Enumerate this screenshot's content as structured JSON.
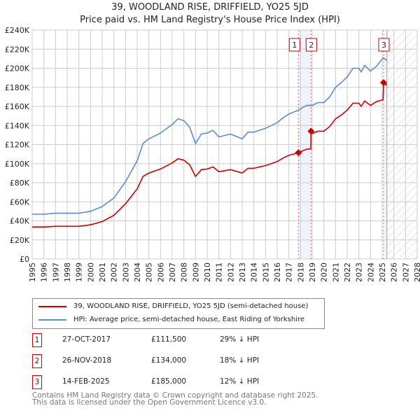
{
  "chart_data": {
    "type": "line",
    "title": "39, WOODLAND RISE, DRIFFIELD, YO25 5JD",
    "subtitle": "Price paid vs. HM Land Registry's House Price Index (HPI)",
    "xlim": [
      1995,
      2028
    ],
    "ylim": [
      0,
      240000
    ],
    "x_ticks": [
      "1995",
      "1996",
      "1997",
      "1998",
      "1999",
      "2000",
      "2001",
      "2002",
      "2003",
      "2004",
      "2005",
      "2006",
      "2007",
      "2008",
      "2009",
      "2010",
      "2011",
      "2012",
      "2013",
      "2014",
      "2015",
      "2016",
      "2017",
      "2018",
      "2019",
      "2020",
      "2021",
      "2022",
      "2023",
      "2024",
      "2025",
      "2026",
      "2027",
      "2028"
    ],
    "y_ticks": [
      {
        "value": 0,
        "label": "£0"
      },
      {
        "value": 20000,
        "label": "£20K"
      },
      {
        "value": 40000,
        "label": "£40K"
      },
      {
        "value": 60000,
        "label": "£60K"
      },
      {
        "value": 80000,
        "label": "£80K"
      },
      {
        "value": 100000,
        "label": "£100K"
      },
      {
        "value": 120000,
        "label": "£120K"
      },
      {
        "value": 140000,
        "label": "£140K"
      },
      {
        "value": 160000,
        "label": "£160K"
      },
      {
        "value": 180000,
        "label": "£180K"
      },
      {
        "value": 200000,
        "label": "£200K"
      },
      {
        "value": 220000,
        "label": "£220K"
      },
      {
        "value": 240000,
        "label": "£240K"
      }
    ],
    "grid": true,
    "forecast_hatch_from": 2025.4,
    "highlight_band": [
      2017.82,
      2018.9
    ],
    "series": [
      {
        "name": "39, WOODLAND RISE, DRIFFIELD, YO25 5JD (semi-detached house)",
        "color": "#cc0000",
        "x": [
          1995,
          1996,
          1997,
          1998,
          1999,
          2000,
          2001,
          2002,
          2003,
          2004,
          2004.5,
          2005,
          2006,
          2007,
          2007.5,
          2008,
          2008.5,
          2009,
          2009.5,
          2010,
          2010.5,
          2011,
          2012,
          2013,
          2013.5,
          2014,
          2015,
          2016,
          2016.5,
          2017,
          2017.82,
          2018.5,
          2018.88,
          2018.9,
          2019,
          2019.5,
          2020,
          2020.5,
          2021,
          2021.5,
          2022,
          2022.5,
          2023,
          2023.2,
          2023.5,
          2024,
          2024.5,
          2025.08,
          2025.12,
          2025.4
        ],
        "y": [
          33600,
          33600,
          34300,
          34300,
          34300,
          35800,
          39300,
          45800,
          57900,
          73600,
          86500,
          90100,
          94400,
          100800,
          105100,
          103700,
          98700,
          86500,
          93700,
          94400,
          96500,
          91500,
          93700,
          90100,
          95100,
          95100,
          98000,
          102200,
          105800,
          108700,
          111500,
          115100,
          115500,
          134000,
          131500,
          134000,
          134000,
          138900,
          147000,
          151000,
          156000,
          163400,
          163400,
          160000,
          165800,
          161000,
          165000,
          167000,
          185000,
          182000
        ]
      },
      {
        "name": "HPI: Average price, semi-detached house, East Riding of Yorkshire",
        "color": "#5b8bd0",
        "x": [
          1995,
          1996,
          1997,
          1998,
          1999,
          2000,
          2001,
          2002,
          2003,
          2004,
          2004.5,
          2005,
          2006,
          2007,
          2007.5,
          2008,
          2008.5,
          2009,
          2009.5,
          2010,
          2010.5,
          2011,
          2012,
          2013,
          2013.5,
          2014,
          2015,
          2016,
          2016.5,
          2017,
          2017.82,
          2018.5,
          2019,
          2019.5,
          2020,
          2020.5,
          2021,
          2021.5,
          2022,
          2022.5,
          2023,
          2023.2,
          2023.5,
          2024,
          2024.5,
          2025.1,
          2025.4
        ],
        "y": [
          47000,
          47000,
          48000,
          48000,
          48000,
          50000,
          55000,
          64000,
          81000,
          103000,
          121000,
          126000,
          132000,
          141000,
          147000,
          145000,
          138000,
          121000,
          131000,
          132000,
          135000,
          128000,
          131000,
          126000,
          133000,
          133000,
          137000,
          143000,
          148000,
          152000,
          156000,
          161000,
          161000,
          164000,
          164000,
          170000,
          180000,
          185000,
          191000,
          200000,
          200000,
          196000,
          203000,
          197000,
          202000,
          211000,
          208000
        ]
      }
    ],
    "sales": [
      {
        "id": "1",
        "x": 2017.82,
        "price": 111500,
        "date": "27-OCT-2017",
        "price_label": "£111,500",
        "hpi_diff": "29% ↓ HPI"
      },
      {
        "id": "2",
        "x": 2018.9,
        "price": 134000,
        "date": "26-NOV-2018",
        "price_label": "£134,000",
        "hpi_diff": "18% ↓ HPI"
      },
      {
        "id": "3",
        "x": 2025.12,
        "price": 185000,
        "date": "14-FEB-2025",
        "price_label": "£185,000",
        "hpi_diff": "12% ↓ HPI"
      }
    ]
  },
  "legend": {
    "property": "39, WOODLAND RISE, DRIFFIELD, YO25 5JD (semi-detached house)",
    "hpi": "HPI: Average price, semi-detached house, East Riding of Yorkshire"
  },
  "colors": {
    "property": "#cc0000",
    "hpi": "#5b8bd0",
    "band": "#eef3fc"
  },
  "footer": {
    "line1": "Contains HM Land Registry data © Crown copyright and database right 2025.",
    "line2": "This data is licensed under the Open Government Licence v3.0."
  }
}
